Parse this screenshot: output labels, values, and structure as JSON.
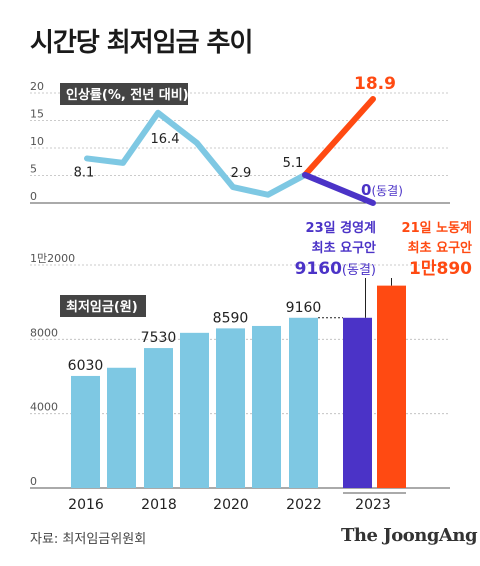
{
  "title": "시간당 최저임금 추이",
  "source": "자료: 최저임금위원회",
  "logo": "The JoongAng",
  "colors": {
    "line_blue": "#7ec8e3",
    "bar_blue": "#7ec8e3",
    "purple": "#4b33c7",
    "orange": "#ff4a12",
    "label_box": "#444444"
  },
  "line_chart": {
    "legend_label": "인상률(%, 전년 대비)",
    "y_ticks": [
      "20",
      "15",
      "10",
      "5",
      "0"
    ],
    "ylim": [
      0,
      20
    ]
  },
  "bar_chart": {
    "legend_label": "최저임금(원)",
    "y_ticks": [
      "1만2000",
      "8000",
      "4000",
      "0"
    ],
    "ylim": [
      0,
      12000
    ],
    "x_labels": [
      "2016",
      "2018",
      "2020",
      "2022",
      "2023"
    ]
  },
  "annotations": {
    "mgmt_title1": "23일 경영계",
    "mgmt_title2": "최초 요구안",
    "mgmt_value": "9160",
    "mgmt_value_suffix": "(동결)",
    "labor_title1": "21일 노동계",
    "labor_title2": "최초 요구안",
    "labor_value": "1만890"
  },
  "chart_data": [
    {
      "type": "line",
      "title": "인상률(%, 전년 대비)",
      "x": [
        "2016",
        "2017",
        "2018",
        "2019",
        "2020",
        "2021",
        "2022",
        "2023"
      ],
      "series": [
        {
          "name": "",
          "values": [
            8.1,
            7.3,
            16.4,
            10.9,
            2.9,
            1.5,
            5.1,
            null
          ]
        },
        {
          "name": "21일 노동계 최초 요구안",
          "values": [
            null,
            null,
            null,
            null,
            null,
            null,
            5.1,
            18.9
          ]
        },
        {
          "name": "23일 경영계 최초 요구안",
          "values": [
            null,
            null,
            null,
            null,
            null,
            null,
            5.1,
            0
          ]
        }
      ],
      "point_labels": [
        {
          "x": "2016",
          "text": "8.1"
        },
        {
          "x": "2018",
          "text": "16.4"
        },
        {
          "x": "2020",
          "text": "2.9"
        },
        {
          "x": "2022",
          "text": "5.1"
        },
        {
          "x": "2023",
          "text": "18.9",
          "series": "labor"
        },
        {
          "x": "2023",
          "text": "0",
          "suffix": "(동결)",
          "series": "mgmt"
        }
      ],
      "ylim": [
        0,
        20
      ]
    },
    {
      "type": "bar",
      "title": "최저임금(원)",
      "categories": [
        "2016",
        "2017",
        "2018",
        "2019",
        "2020",
        "2021",
        "2022",
        "2023 경영계",
        "2023 노동계"
      ],
      "values": [
        6030,
        6470,
        7530,
        8350,
        8590,
        8720,
        9160,
        9160,
        10890
      ],
      "data_labels": [
        "6030",
        "",
        "7530",
        "",
        "8590",
        "",
        "9160",
        "",
        ""
      ],
      "ylim": [
        0,
        12000
      ]
    }
  ]
}
